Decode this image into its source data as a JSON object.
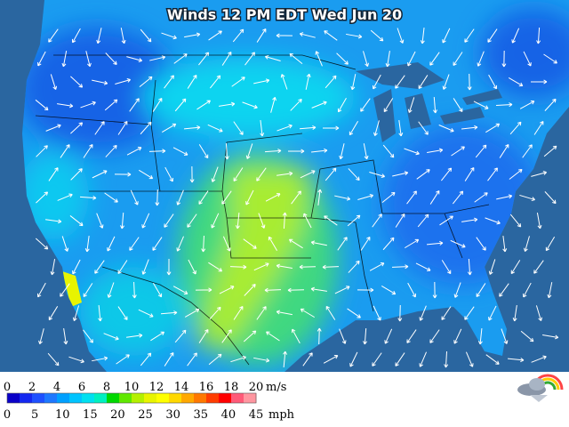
{
  "header": {
    "title": "Winds 12 PM EDT Wed Jun 20"
  },
  "legend": {
    "colors": [
      "#0a00c8",
      "#1428f0",
      "#1e50ff",
      "#1e78ff",
      "#00a0ff",
      "#00c4ff",
      "#00e0f0",
      "#00f0c0",
      "#00d800",
      "#60e800",
      "#b4f000",
      "#e8f400",
      "#ffff00",
      "#ffd800",
      "#ffa800",
      "#ff7800",
      "#ff3c00",
      "#ff0000",
      "#ff5a78",
      "#ff96a0"
    ],
    "ms_ticks": [
      0,
      2,
      4,
      6,
      8,
      10,
      12,
      14,
      16,
      18,
      20
    ],
    "ms_unit": "m/s",
    "mph_ticks": [
      0,
      5,
      10,
      15,
      20,
      25,
      30,
      35,
      40,
      45
    ],
    "mph_unit": "mph"
  }
}
